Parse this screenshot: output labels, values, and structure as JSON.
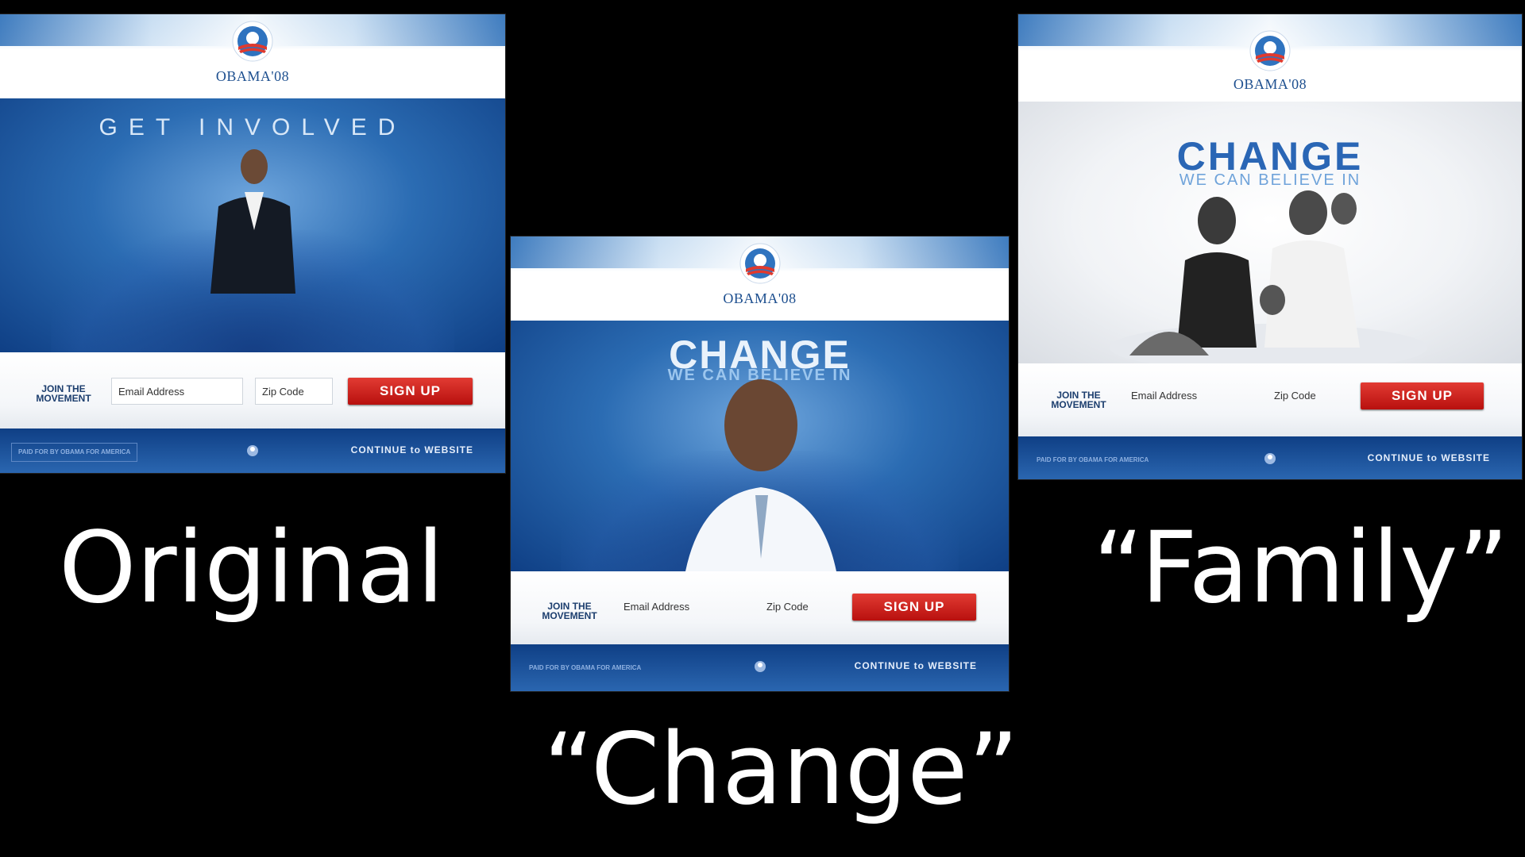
{
  "panels": [
    {
      "brand": "OBAMA'08",
      "hero_title": "GET INVOLVED",
      "join": [
        "JOIN THE",
        "MOVEMENT"
      ],
      "email_placeholder": "Email Address",
      "zip_placeholder": "Zip Code",
      "signup": "SIGN UP",
      "paid_for": "PAID FOR BY OBAMA FOR AMERICA",
      "continue": "CONTINUE to WEBSITE",
      "caption": "Original"
    },
    {
      "brand": "OBAMA'08",
      "hero_title": "CHANGE",
      "hero_sub": "WE CAN BELIEVE IN",
      "join": [
        "JOIN THE",
        "MOVEMENT"
      ],
      "email_placeholder": "Email Address",
      "zip_placeholder": "Zip Code",
      "signup": "SIGN UP",
      "paid_for": "PAID FOR BY OBAMA FOR AMERICA",
      "continue": "CONTINUE to WEBSITE",
      "caption": "“Change”"
    },
    {
      "brand": "OBAMA'08",
      "hero_title": "CHANGE",
      "hero_sub": "WE CAN BELIEVE IN",
      "join": [
        "JOIN THE",
        "MOVEMENT"
      ],
      "email_placeholder": "Email Address",
      "zip_placeholder": "Zip Code",
      "signup": "SIGN UP",
      "paid_for": "PAID FOR BY OBAMA FOR AMERICA",
      "continue": "CONTINUE to WEBSITE",
      "caption": "“Family”"
    }
  ],
  "colors": {
    "background": "#000000",
    "brand_blue": "#1d4f8f",
    "signup_red": "#c4201c",
    "footer_blue": "#1a4f98"
  }
}
